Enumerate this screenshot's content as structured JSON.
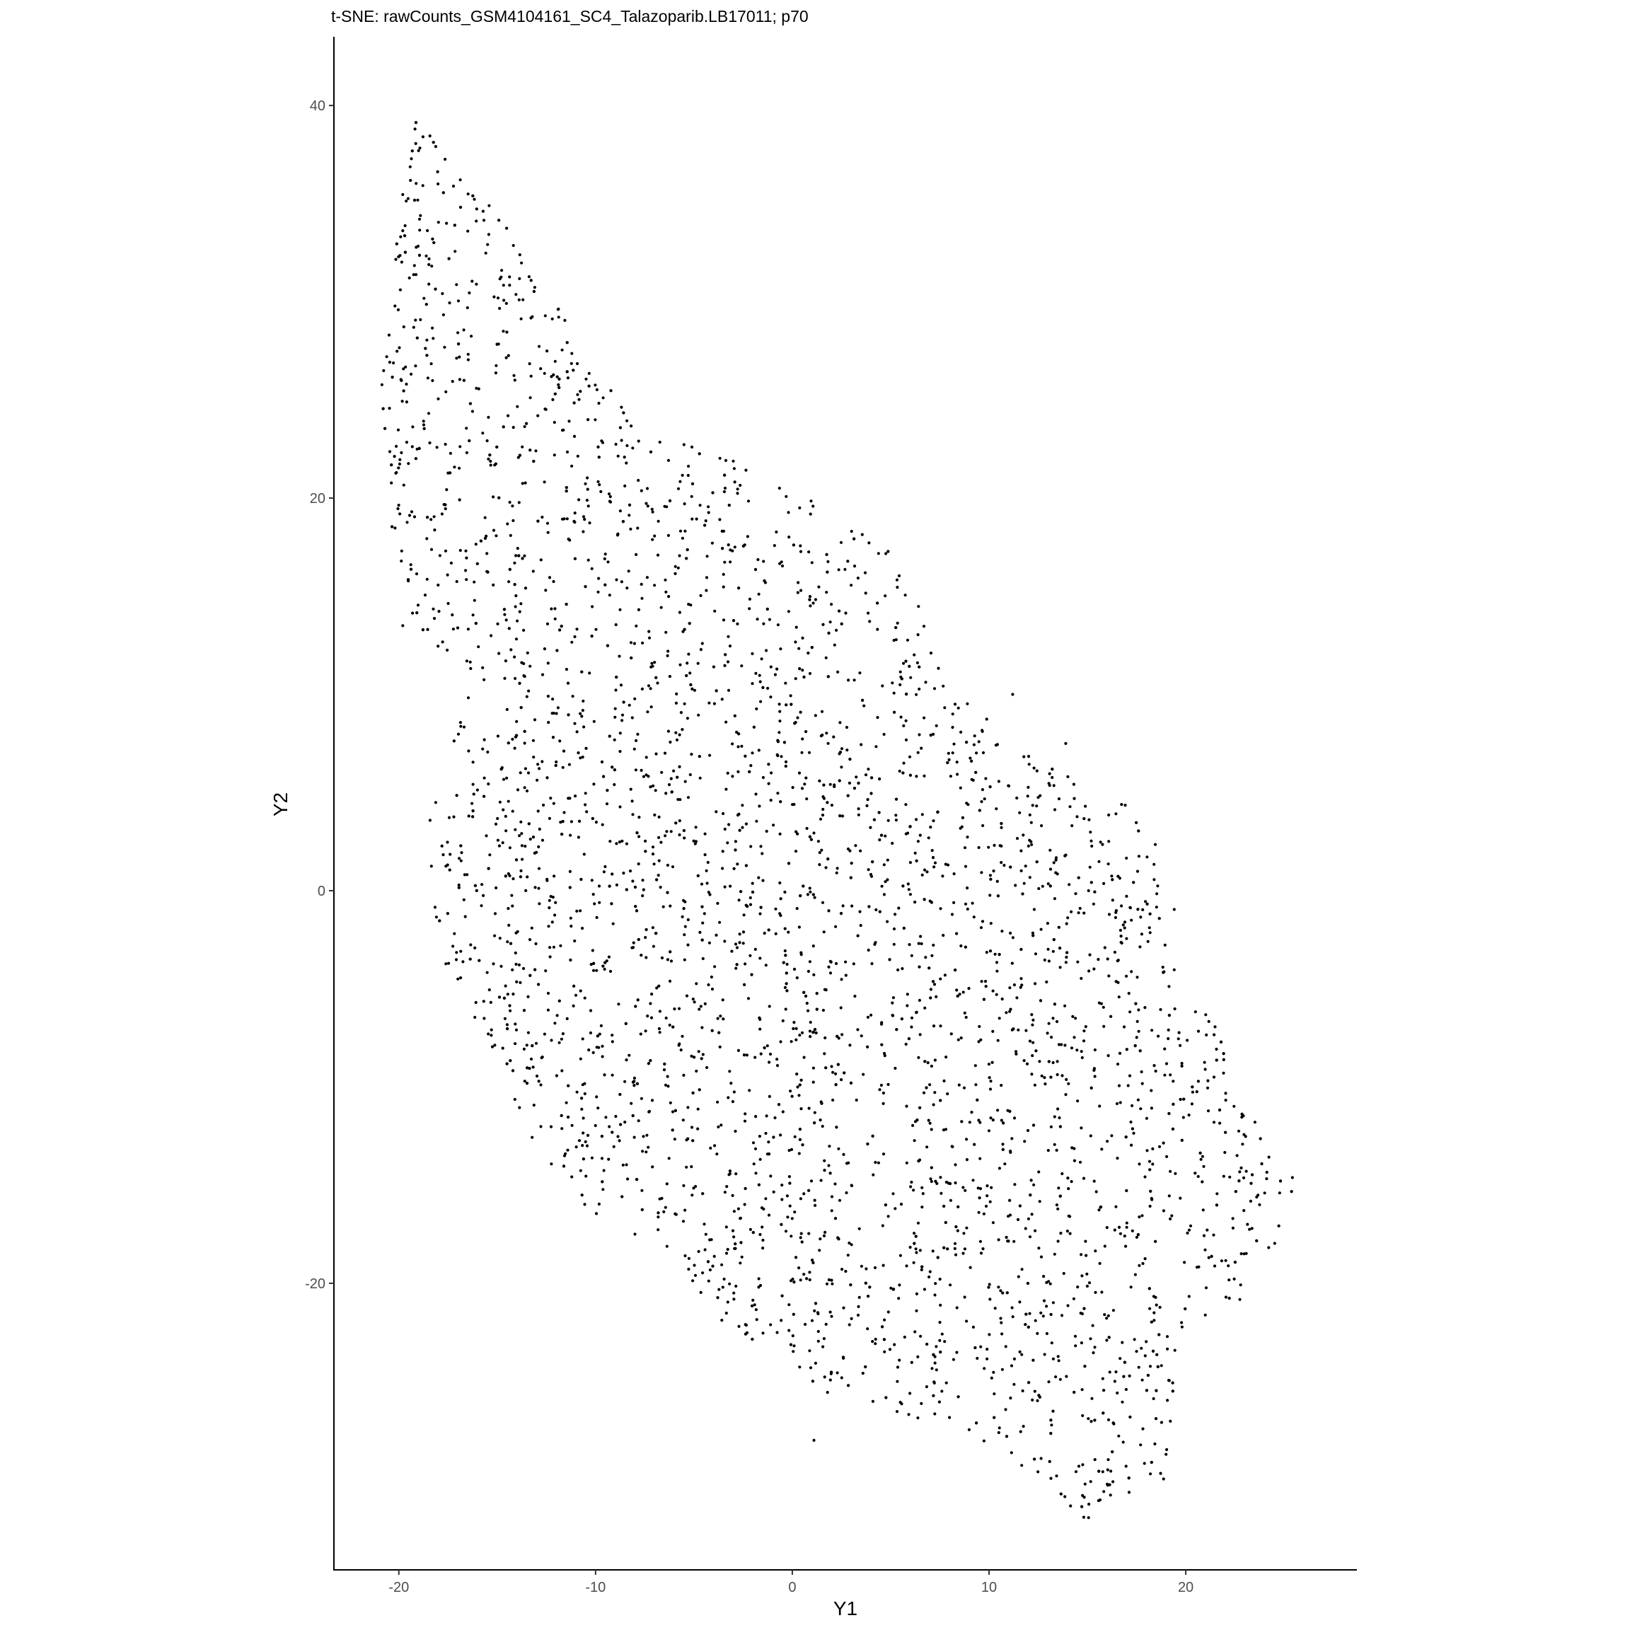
{
  "chart_data": {
    "type": "scatter",
    "title": "t-SNE: rawCounts_GSM4104161_SC4_Talazoparib.LB17011; p70",
    "xlabel": "Y1",
    "ylabel": "Y2",
    "xlim": [
      -23.3,
      28.7
    ],
    "ylim": [
      -34.6,
      43.5
    ],
    "xticks": [
      -20,
      -10,
      0,
      10,
      20
    ],
    "yticks": [
      -20,
      0,
      20,
      40
    ],
    "xtick_labels": [
      "-20",
      "-10",
      "0",
      "10",
      "20"
    ],
    "ytick_labels": [
      "-20",
      "0",
      "20",
      "40"
    ],
    "grid": false,
    "legend": "none",
    "point_color": "#000000",
    "point_count_approx": 4000,
    "cloud_outline": [
      [
        -19.2,
        40.0
      ],
      [
        -18.2,
        38.5
      ],
      [
        -16.2,
        35.8
      ],
      [
        -14.5,
        34.0
      ],
      [
        -13.0,
        31.2
      ],
      [
        -11.2,
        28.8
      ],
      [
        -9.8,
        26.5
      ],
      [
        -8.5,
        24.5
      ],
      [
        -6.0,
        23.2
      ],
      [
        -3.5,
        22.5
      ],
      [
        -1.0,
        21.0
      ],
      [
        1.8,
        20.0
      ],
      [
        5.0,
        17.5
      ],
      [
        6.8,
        14.5
      ],
      [
        7.5,
        11.0
      ],
      [
        9.5,
        9.5
      ],
      [
        10.5,
        8.0
      ],
      [
        14.5,
        5.5
      ],
      [
        17.5,
        4.5
      ],
      [
        19.5,
        1.5
      ],
      [
        19.5,
        -4.0
      ],
      [
        21.5,
        -6.5
      ],
      [
        23.0,
        -10.5
      ],
      [
        24.5,
        -14.0
      ],
      [
        26.0,
        -15.0
      ],
      [
        24.5,
        -18.5
      ],
      [
        23.5,
        -20.5
      ],
      [
        20.5,
        -22.0
      ],
      [
        19.5,
        -25.0
      ],
      [
        19.0,
        -30.0
      ],
      [
        17.0,
        -31.0
      ],
      [
        15.0,
        -32.5
      ],
      [
        13.0,
        -30.0
      ],
      [
        11.0,
        -29.0
      ],
      [
        9.0,
        -28.0
      ],
      [
        6.5,
        -27.0
      ],
      [
        4.5,
        -26.5
      ],
      [
        2.0,
        -26.0
      ],
      [
        -1.0,
        -23.0
      ],
      [
        -3.0,
        -23.0
      ],
      [
        -5.0,
        -20.0
      ],
      [
        -7.5,
        -17.0
      ],
      [
        -10.0,
        -16.5
      ],
      [
        -13.0,
        -14.0
      ],
      [
        -14.0,
        -11.0
      ],
      [
        -15.5,
        -8.0
      ],
      [
        -17.5,
        -4.5
      ],
      [
        -18.5,
        -0.5
      ],
      [
        -18.5,
        4.0
      ],
      [
        -17.5,
        7.5
      ],
      [
        -17.0,
        11.0
      ],
      [
        -19.5,
        14.0
      ],
      [
        -20.5,
        19.0
      ],
      [
        -21.0,
        24.0
      ],
      [
        -20.5,
        31.0
      ]
    ],
    "outlier_points": [
      [
        1.1,
        -28.0
      ],
      [
        7.6,
        -25.5
      ],
      [
        13.9,
        7.5
      ],
      [
        11.2,
        10.0
      ],
      [
        -19.8,
        13.5
      ],
      [
        -8.0,
        -17.5
      ],
      [
        -17.0,
        -4.5
      ]
    ]
  }
}
